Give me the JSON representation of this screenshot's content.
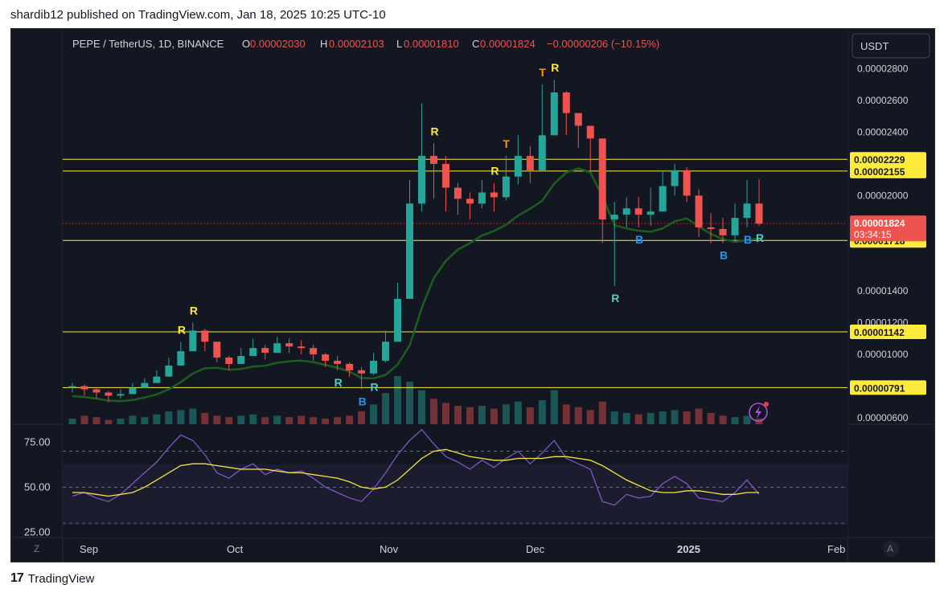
{
  "header": {
    "published": "shardib12 published on TradingView.com, Jan 18, 2025 10:25 UTC-10"
  },
  "footer": {
    "brand": "TradingView",
    "logo": "17"
  },
  "colors": {
    "bg": "#131722",
    "up": "#26a69a",
    "down": "#ef5350",
    "yellow": "#ffeb3b",
    "rsi": "#7e57c2",
    "rsi_ma": "#f5e342"
  },
  "symbol": {
    "name": "PEPE / TetherUS, 1D, BINANCE",
    "o_label": "O",
    "o": "0.00002030",
    "h_label": "H",
    "h": "0.00002103",
    "l_label": "L",
    "l": "0.00001810",
    "c_label": "C",
    "c": "0.00001824",
    "chg": "−0.00000206 (−10.15%)"
  },
  "currency_button": "USDT",
  "countdown": "03:34:15",
  "z_button": "Z",
  "a_button": "A",
  "flash_icon": "lightning-icon",
  "chart_data": [
    {
      "type": "candlestick",
      "title": "PEPE / TetherUS, 1D, BINANCE",
      "y_ticks": [
        "0.00002800",
        "0.00002600",
        "0.00002400",
        "0.00002000",
        "0.00001400",
        "0.00001200",
        "0.00001000",
        "0.00000600"
      ],
      "ylim": [
        5.6e-06,
        3.05e-05
      ],
      "x_ticks": [
        "Sep",
        "Oct",
        "Nov",
        "Dec",
        "2025",
        "Feb"
      ],
      "horizontal_levels": [
        2.229e-05,
        2.155e-05,
        1.718e-05,
        1.142e-05,
        7.91e-06
      ],
      "level_labels": [
        "0.00002229",
        "0.00002155",
        "0.00001718",
        "0.00001142",
        "0.00000791"
      ],
      "last_price": 1.824e-05,
      "last_price_label": "0.00001824",
      "series": [
        {
          "name": "close",
          "values": [
            8e-06,
            7.8e-06,
            7.6e-06,
            7.4e-06,
            7.5e-06,
            7.9e-06,
            8.2e-06,
            8.6e-06,
            9.3e-06,
            1.02e-05,
            1.15e-05,
            1.08e-05,
            9.8e-06,
            9.4e-06,
            9.9e-06,
            1.04e-05,
            1.01e-05,
            1.07e-05,
            1.05e-05,
            1.04e-05,
            1e-05,
            9.6e-06,
            9.4e-06,
            9e-06,
            8.8e-06,
            9.6e-06,
            1.08e-05,
            1.35e-05,
            1.95e-05,
            2.25e-05,
            2.2e-05,
            2.05e-05,
            1.98e-05,
            1.95e-05,
            2.02e-05,
            1.99e-05,
            2.12e-05,
            2.25e-05,
            2.16e-05,
            2.38e-05,
            2.65e-05,
            2.52e-05,
            2.44e-05,
            2.36e-05,
            1.85e-05,
            1.88e-05,
            1.92e-05,
            1.88e-05,
            1.9e-05,
            2.06e-05,
            2.16e-05,
            2e-05,
            1.8e-05,
            1.79e-05,
            1.75e-05,
            1.86e-05,
            1.95e-05,
            1.824e-05
          ]
        },
        {
          "name": "high",
          "values": [
            8.2e-06,
            8.1e-06,
            7.9e-06,
            7.7e-06,
            7.8e-06,
            8.2e-06,
            8.5e-06,
            9e-06,
            9.8e-06,
            1.08e-05,
            1.2e-05,
            1.16e-05,
            1.06e-05,
            9.9e-06,
            1.04e-05,
            1.1e-05,
            1.06e-05,
            1.11e-05,
            1.1e-05,
            1.09e-05,
            1.06e-05,
            1.01e-05,
            9.9e-06,
            9.5e-06,
            9.2e-06,
            1.01e-05,
            1.15e-05,
            1.45e-05,
            2.1e-05,
            2.58e-05,
            2.33e-05,
            2.25e-05,
            2.08e-05,
            2.02e-05,
            2.1e-05,
            2.08e-05,
            2.25e-05,
            2.38e-05,
            2.31e-05,
            2.7e-05,
            2.73e-05,
            2.66e-05,
            2.5e-05,
            2.44e-05,
            2.3e-05,
            1.96e-05,
            1.99e-05,
            1.99e-05,
            2.05e-05,
            2.15e-05,
            2.2e-05,
            2.18e-05,
            2.04e-05,
            1.89e-05,
            1.86e-05,
            1.95e-05,
            2.1e-05,
            2.103e-05
          ]
        },
        {
          "name": "low",
          "values": [
            7.6e-06,
            7.4e-06,
            7.2e-06,
            7e-06,
            7.2e-06,
            7.5e-06,
            7.9e-06,
            8.2e-06,
            8.8e-06,
            9.6e-06,
            1.04e-05,
            1.02e-05,
            9.5e-06,
            9e-06,
            9.5e-06,
            9.9e-06,
            9.7e-06,
            1.02e-05,
            1.01e-05,
            1e-05,
            9.6e-06,
            9.2e-06,
            9e-06,
            8.6e-06,
            7.8e-06,
            8.7e-06,
            9.5e-06,
            1.12e-05,
            1.38e-05,
            1.9e-05,
            1.98e-05,
            1.9e-05,
            1.88e-05,
            1.85e-05,
            1.92e-05,
            1.9e-05,
            1.97e-05,
            2.07e-05,
            2.08e-05,
            2.15e-05,
            2.4e-05,
            2.38e-05,
            2.3e-05,
            2.15e-05,
            1.7e-05,
            1.43e-05,
            1.8e-05,
            1.8e-05,
            1.81e-05,
            1.9e-05,
            2e-05,
            1.96e-05,
            1.74e-05,
            1.7e-05,
            1.7e-05,
            1.72e-05,
            1.8e-05,
            1.81e-05
          ]
        }
      ],
      "volume": [
        4,
        6,
        5,
        3,
        4,
        6,
        5,
        7,
        9,
        10,
        11,
        8,
        6,
        5,
        6,
        7,
        5,
        6,
        5,
        6,
        5,
        4,
        5,
        6,
        9,
        14,
        22,
        34,
        30,
        24,
        18,
        15,
        13,
        12,
        13,
        11,
        14,
        16,
        12,
        17,
        24,
        14,
        12,
        10,
        16,
        9,
        8,
        7,
        8,
        9,
        10,
        9,
        11,
        8,
        6,
        5,
        6,
        4
      ],
      "signals": [
        {
          "label": "R",
          "date_index": 9,
          "color": "#ffeb3b"
        },
        {
          "label": "R",
          "date_index": 10,
          "color": "#ffeb3b"
        },
        {
          "label": "R",
          "date_index": 22,
          "color": "#4dd0c6"
        },
        {
          "label": "B",
          "date_index": 24,
          "color": "#2196f3"
        },
        {
          "label": "R",
          "date_index": 25,
          "color": "#4dd0c6"
        },
        {
          "label": "R",
          "date_index": 30,
          "color": "#ffeb3b"
        },
        {
          "label": "R",
          "date_index": 35,
          "color": "#ffeb3b"
        },
        {
          "label": "T",
          "date_index": 36,
          "color": "#ff9800"
        },
        {
          "label": "T",
          "date_index": 39,
          "color": "#ff9800"
        },
        {
          "label": "R",
          "date_index": 40,
          "color": "#ffeb3b"
        },
        {
          "label": "R",
          "date_index": 45,
          "color": "#4dd0c6"
        },
        {
          "label": "B",
          "date_index": 47,
          "color": "#2196f3"
        },
        {
          "label": "B",
          "date_index": 54,
          "color": "#2196f3"
        },
        {
          "label": "B",
          "date_index": 56,
          "color": "#2196f3"
        },
        {
          "label": "R",
          "date_index": 57,
          "color": "#4dd0c6"
        }
      ]
    },
    {
      "type": "line",
      "y_ticks": [
        "75.00",
        "50.00",
        "25.00"
      ],
      "ylim": [
        22,
        85
      ],
      "bands": [
        70,
        50,
        30
      ],
      "series": [
        {
          "name": "rsi",
          "values": [
            45,
            47,
            44,
            42,
            46,
            52,
            58,
            64,
            72,
            79,
            76,
            68,
            58,
            55,
            60,
            63,
            57,
            60,
            58,
            59,
            55,
            50,
            47,
            44,
            42,
            49,
            58,
            68,
            76,
            82,
            74,
            67,
            64,
            60,
            65,
            61,
            66,
            70,
            63,
            69,
            76,
            66,
            63,
            60,
            42,
            40,
            46,
            44,
            45,
            52,
            56,
            52,
            44,
            43,
            42,
            47,
            54,
            46
          ]
        },
        {
          "name": "rsi_ma",
          "values": [
            47,
            47,
            46,
            45,
            46,
            47,
            50,
            54,
            58,
            62,
            63,
            63,
            62,
            61,
            60,
            60,
            60,
            59,
            58,
            58,
            57,
            56,
            55,
            53,
            50,
            49,
            50,
            54,
            60,
            66,
            70,
            71,
            69,
            67,
            66,
            65,
            65,
            66,
            66,
            66,
            67,
            67,
            66,
            65,
            62,
            58,
            54,
            51,
            48,
            47,
            47,
            48,
            48,
            47,
            46,
            46,
            47,
            47
          ]
        }
      ]
    }
  ]
}
